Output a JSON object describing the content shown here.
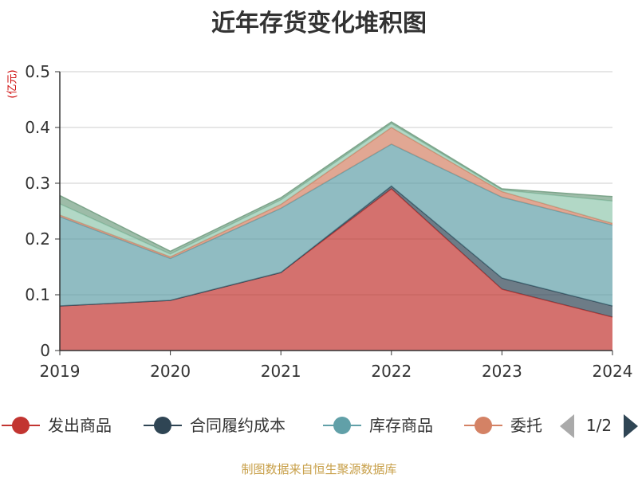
{
  "title": "近年存货变化堆积图",
  "unit_label": "(亿元)",
  "footer": "制图数据来自恒生聚源数据库",
  "legend": {
    "page_indicator": "1/2",
    "prev_icon": "triangle-left-icon",
    "next_icon": "triangle-right-icon",
    "visible_labels": [
      "发出商品",
      "合同履约成本",
      "库存商品",
      "委托"
    ]
  },
  "chart_data": {
    "type": "area",
    "stacked": true,
    "title": "近年存货变化堆积图",
    "ylabel": "(亿元)",
    "xlabel": "",
    "ylim": [
      0,
      0.5
    ],
    "yticks": [
      "0",
      "0.1",
      "0.2",
      "0.3",
      "0.4",
      "0.5"
    ],
    "grid": true,
    "legend_position": "bottom",
    "categories": [
      "2019",
      "2020",
      "2021",
      "2022",
      "2023",
      "2024"
    ],
    "series": [
      {
        "name": "发出商品",
        "color": "#c23531",
        "values": [
          0.08,
          0.09,
          0.14,
          0.29,
          0.11,
          0.06
        ]
      },
      {
        "name": "合同履约成本",
        "color": "#2f4554",
        "values": [
          0.0,
          0.0,
          0.0,
          0.005,
          0.02,
          0.02
        ]
      },
      {
        "name": "库存商品",
        "color": "#61a0a8",
        "values": [
          0.16,
          0.075,
          0.115,
          0.075,
          0.145,
          0.145
        ]
      },
      {
        "name": "委托",
        "color": "#d48265",
        "values": [
          0.003,
          0.003,
          0.007,
          0.03,
          0.01,
          0.003
        ]
      },
      {
        "color": "#91c7ae",
        "values": [
          0.02,
          0.005,
          0.008,
          0.007,
          0.003,
          0.04
        ]
      },
      {
        "color": "#749f83",
        "values": [
          0.015,
          0.005,
          0.004,
          0.003,
          0.002,
          0.008
        ]
      }
    ]
  }
}
